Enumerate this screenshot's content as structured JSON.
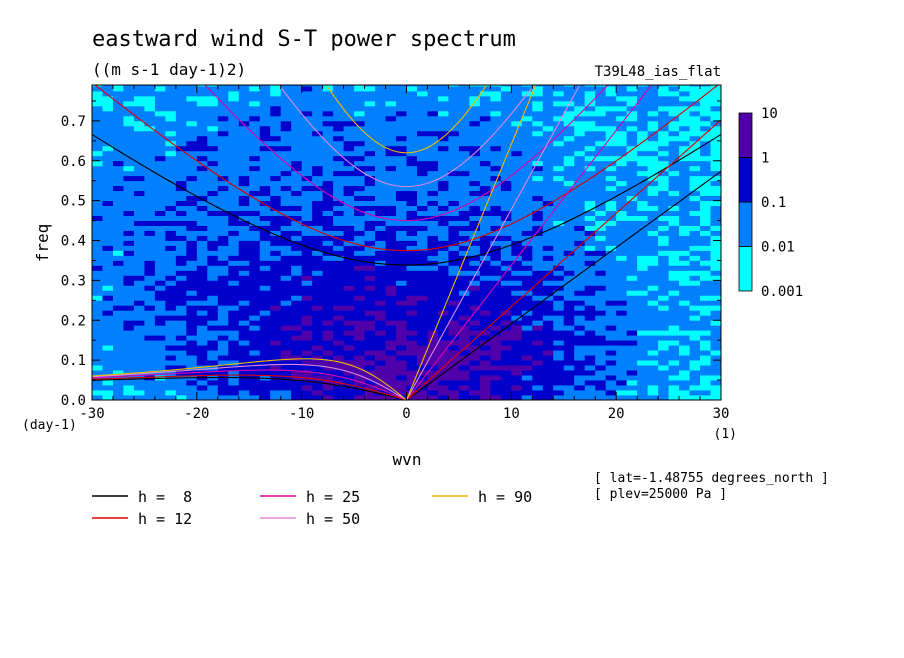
{
  "chart_data": {
    "type": "heatmap",
    "title": "eastward wind S-T power spectrum",
    "units": "((m s-1 day-1)2)",
    "run_label": "T39L48_ias_flat",
    "xlabel": "wvn",
    "ylabel": "freq",
    "x_unit": "(1)",
    "y_unit": "(day-1)",
    "xlim": [
      -30,
      30
    ],
    "ylim": [
      0,
      0.79
    ],
    "x_ticks": [
      -30,
      -20,
      -10,
      0,
      10,
      20,
      30
    ],
    "x_tick_labels": [
      "-30",
      "-20",
      "-10",
      "0",
      "10",
      "20",
      "30"
    ],
    "y_ticks": [
      0,
      0.1,
      0.2,
      0.3,
      0.4,
      0.5,
      0.6,
      0.7
    ],
    "y_tick_labels": [
      "0.0",
      "0.1",
      "0.2",
      "0.3",
      "0.4",
      "0.5",
      "0.6",
      "0.7"
    ],
    "color_levels": [
      0.001,
      0.01,
      0.1,
      1,
      10
    ],
    "color_level_labels": [
      "0.001",
      "0.01",
      "0.1",
      "1",
      "10"
    ],
    "level_colors": [
      "#00ffff",
      "#0080ff",
      "#0000cc",
      "#5000aa"
    ],
    "annotations": [
      "[ lat=-1.48755 degrees_north ]",
      "[ plev=25000 Pa ]"
    ],
    "equivalent_depths": [
      {
        "label": "h =  8",
        "h": 8,
        "color": "#000000"
      },
      {
        "label": "h = 12",
        "h": 12,
        "color": "#dd0000"
      },
      {
        "label": "h = 25",
        "h": 25,
        "color": "#dd00aa"
      },
      {
        "label": "h = 50",
        "h": 50,
        "color": "#dd88dd"
      },
      {
        "label": "h = 90",
        "h": 90,
        "color": "#eebb00"
      }
    ]
  }
}
